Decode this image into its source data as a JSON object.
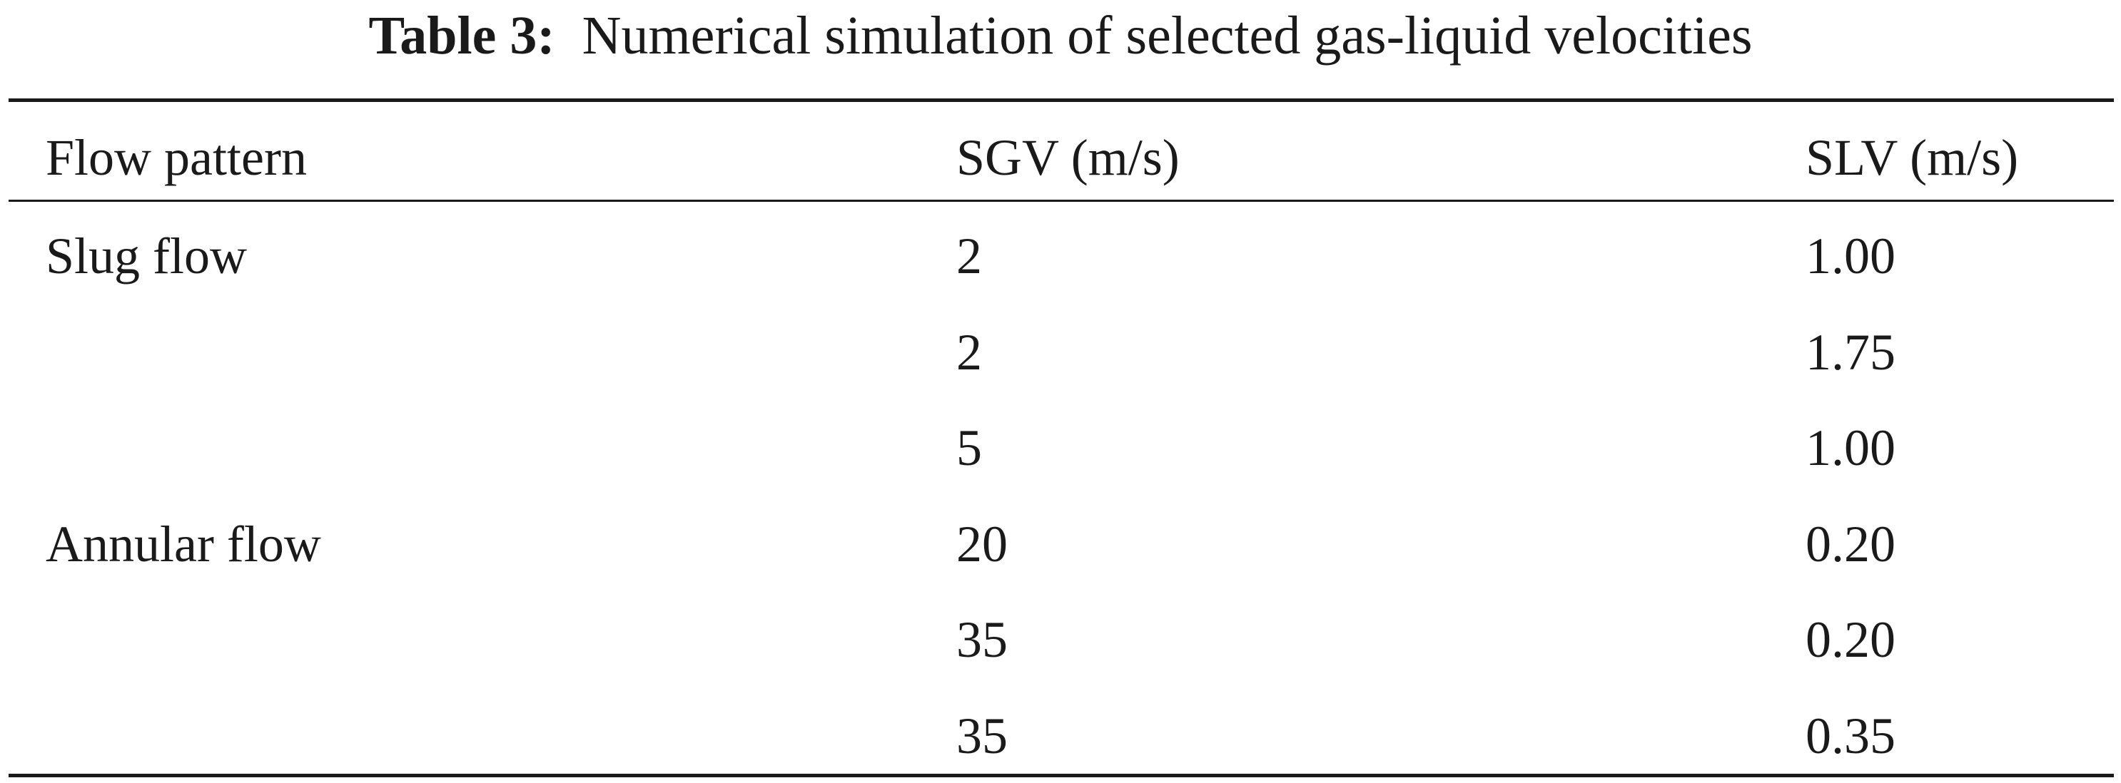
{
  "caption": {
    "label": "Table 3:",
    "text": "Numerical simulation of selected gas-liquid velocities"
  },
  "table": {
    "headers": [
      "Flow pattern",
      "SGV (m/s)",
      "SLV (m/s)"
    ],
    "rows": [
      {
        "pattern": "Slug flow",
        "sgv": "2",
        "slv": "1.00"
      },
      {
        "pattern": "",
        "sgv": "2",
        "slv": "1.75"
      },
      {
        "pattern": "",
        "sgv": "5",
        "slv": "1.00"
      },
      {
        "pattern": "Annular flow",
        "sgv": "20",
        "slv": "0.20"
      },
      {
        "pattern": "",
        "sgv": "35",
        "slv": "0.20"
      },
      {
        "pattern": "",
        "sgv": "35",
        "slv": "0.35"
      }
    ]
  }
}
